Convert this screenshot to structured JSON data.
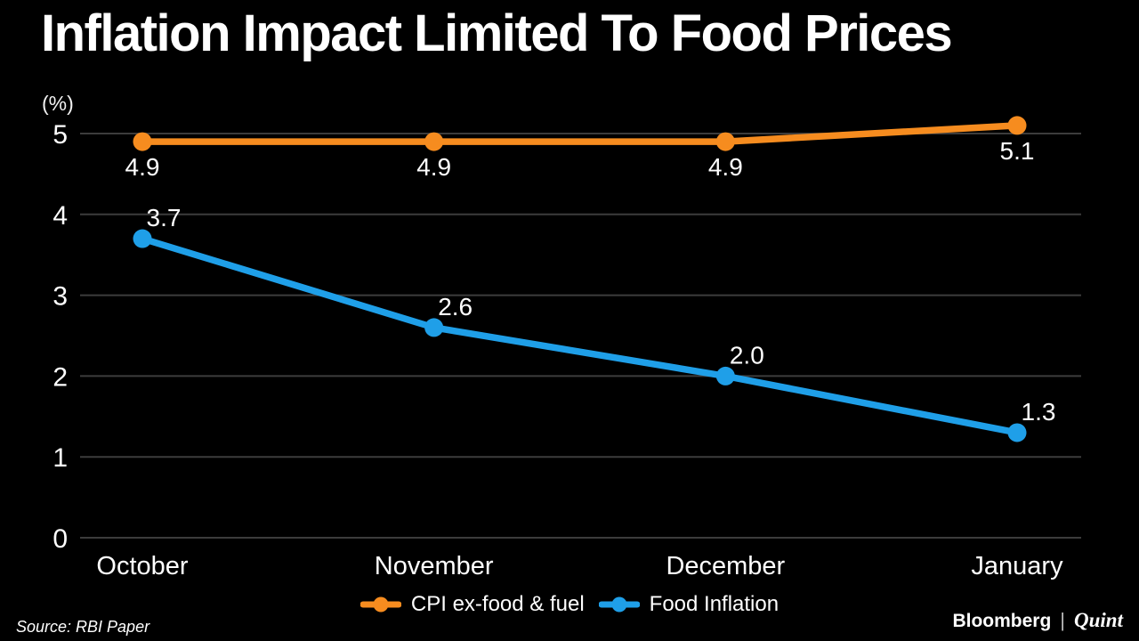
{
  "title": "Inflation Impact Limited To Food Prices",
  "chart_data": {
    "type": "line",
    "categories": [
      "October",
      "November",
      "December",
      "January"
    ],
    "series": [
      {
        "name": "CPI ex-food & fuel",
        "color": "#F68C1F",
        "values": [
          4.9,
          4.9,
          4.9,
          5.1
        ],
        "data_labels": [
          "4.9",
          "4.9",
          "4.9",
          "5.1"
        ],
        "data_label_position": "below"
      },
      {
        "name": "Food Inflation",
        "color": "#1F9FE8",
        "values": [
          3.7,
          2.6,
          2.0,
          1.3
        ],
        "data_labels": [
          "3.7",
          "2.6",
          "2.0",
          "1.3"
        ],
        "data_label_position": "above"
      }
    ],
    "ylabel": "(%)",
    "y_ticks": [
      0,
      1,
      2,
      3,
      4,
      5
    ],
    "ylim": [
      0,
      5.5
    ],
    "grid": true,
    "grid_color": "#3C3C3C",
    "text_color": "#FFFFFF",
    "background_color": "#000000",
    "legend_position": "bottom-center"
  },
  "footer": {
    "source": "Source: RBI Paper",
    "brand": {
      "bloomberg": "Bloomberg",
      "separator": "|",
      "quint": "Quint"
    }
  }
}
